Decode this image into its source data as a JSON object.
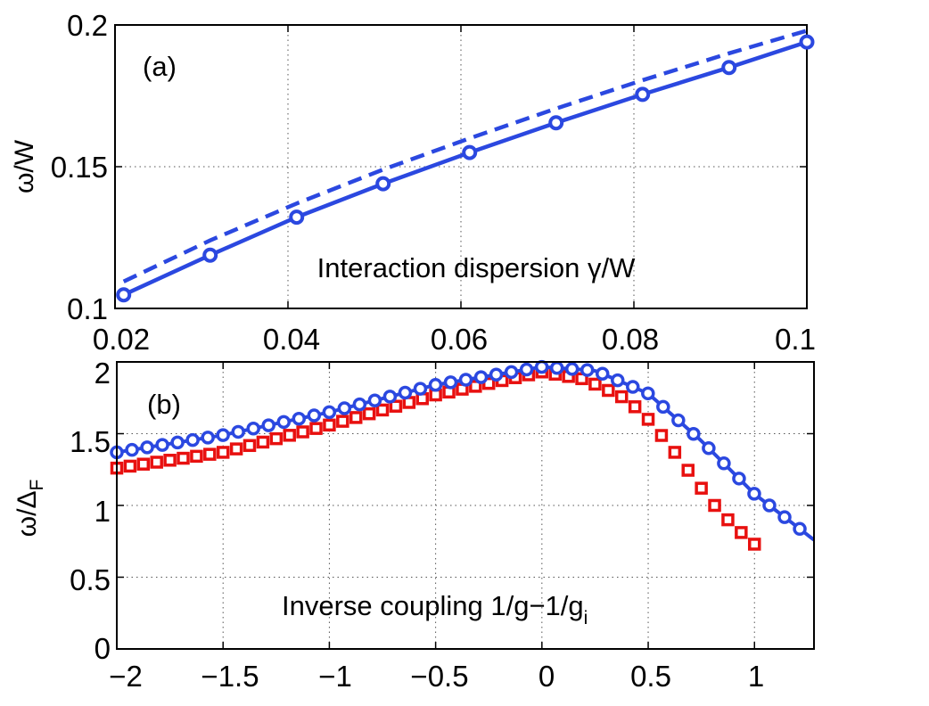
{
  "chart_data": [
    {
      "type": "line",
      "panel_label": "(a)",
      "ylabel": "ω/W",
      "xlabel": "Interaction dispersion γ/W",
      "xlim": [
        0.02,
        0.1
      ],
      "ylim": [
        0.1,
        0.2
      ],
      "xticks": [
        "0.02",
        "0.04",
        "0.06",
        "0.08",
        "0.1"
      ],
      "yticks": [
        "0.1",
        "0.15",
        "0.2"
      ],
      "grid": true,
      "series": [
        {
          "style": "solid-circles",
          "color": "#2b48e0",
          "x": [
            0.021,
            0.031,
            0.041,
            0.051,
            0.061,
            0.071,
            0.081,
            0.091,
            0.1
          ],
          "y": [
            0.1048,
            0.1188,
            0.1322,
            0.144,
            0.155,
            0.1655,
            0.1755,
            0.185,
            0.194
          ]
        },
        {
          "style": "dashed",
          "color": "#2b48e0",
          "x": [
            0.021,
            0.031,
            0.041,
            0.051,
            0.061,
            0.071,
            0.081,
            0.091,
            0.1
          ],
          "y": [
            0.1095,
            0.124,
            0.137,
            0.149,
            0.16,
            0.1705,
            0.1805,
            0.19,
            0.198
          ]
        }
      ]
    },
    {
      "type": "line",
      "panel_label": "(b)",
      "ylabel_main": "ω/Δ",
      "ylabel_sub": "F",
      "xlabel_main": "Inverse coupling 1/g−1/g",
      "xlabel_sub": "i",
      "xlim": [
        -2,
        1.28
      ],
      "ylim": [
        0,
        2
      ],
      "xticks": [
        "−2",
        "−1.5",
        "−1",
        "−0.5",
        "0",
        "0.5",
        "1"
      ],
      "yticks": [
        "0",
        "0.5",
        "1",
        "1.5",
        "2"
      ],
      "grid": true,
      "series": [
        {
          "style": "circles-line",
          "color": "#2b48e0",
          "x": [
            -2,
            -1.5,
            -1.0,
            -0.5,
            0.0,
            0.25,
            0.5,
            0.75,
            1.0,
            1.28
          ],
          "y": [
            1.37,
            1.49,
            1.65,
            1.84,
            1.965,
            1.94,
            1.78,
            1.45,
            1.08,
            0.76
          ],
          "marker_step": 0.0714
        },
        {
          "style": "squares",
          "color": "#e8100f",
          "x": [
            -2,
            -1.5,
            -1.0,
            -0.5,
            0.0,
            0.2,
            0.4,
            0.5,
            0.6,
            0.7,
            0.8,
            0.9,
            1.0
          ],
          "y": [
            1.26,
            1.37,
            1.56,
            1.77,
            1.93,
            1.88,
            1.74,
            1.6,
            1.42,
            1.22,
            1.02,
            0.86,
            0.73
          ],
          "marker_step": 0.0625
        }
      ]
    }
  ]
}
